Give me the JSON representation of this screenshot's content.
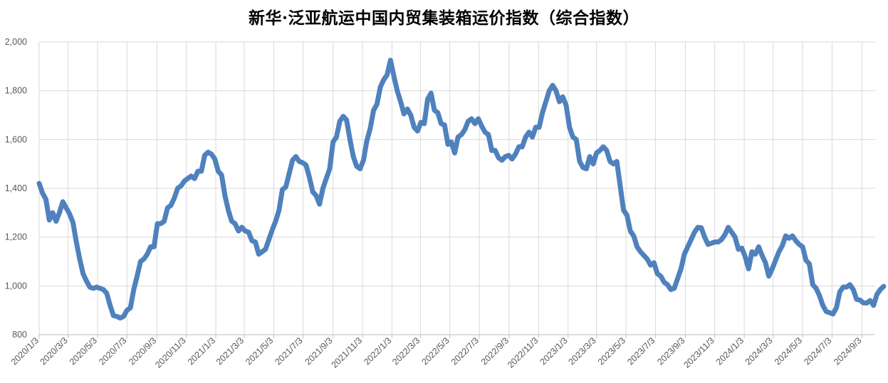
{
  "chart_data": {
    "type": "line",
    "title": "新华·泛亚航运中国内贸集装箱运价指数（综合指数）",
    "xlabel": "",
    "ylabel": "",
    "ylim": [
      800,
      2000
    ],
    "yticks": [
      "800",
      "1,000",
      "1,200",
      "1,400",
      "1,600",
      "1,800",
      "2,000"
    ],
    "xticks": [
      "2020/1/3",
      "2020/3/3",
      "2020/5/3",
      "2020/7/3",
      "2020/9/3",
      "2020/11/3",
      "2021/1/3",
      "2021/3/3",
      "2021/5/3",
      "2021/7/3",
      "2021/9/3",
      "2021/11/3",
      "2022/1/3",
      "2022/3/3",
      "2022/5/3",
      "2022/7/3",
      "2022/9/3",
      "2022/11/3",
      "2023/1/3",
      "2023/3/3",
      "2023/5/3",
      "2023/7/3",
      "2023/9/3",
      "2023/11/3",
      "2024/1/3",
      "2024/3/3",
      "2024/5/3",
      "2024/7/3",
      "2024/9/3"
    ],
    "grid": true,
    "legend": "none",
    "series": [
      {
        "color": "#4f81bd",
        "points": [
          [
            "2020/1/3",
            1420
          ],
          [
            "2020/1/10",
            1380
          ],
          [
            "2020/1/17",
            1355
          ],
          [
            "2020/1/24",
            1270
          ],
          [
            "2020/1/31",
            1300
          ],
          [
            "2020/2/7",
            1265
          ],
          [
            "2020/2/14",
            1300
          ],
          [
            "2020/2/21",
            1345
          ],
          [
            "2020/2/28",
            1320
          ],
          [
            "2020/3/6",
            1295
          ],
          [
            "2020/3/13",
            1260
          ],
          [
            "2020/3/20",
            1180
          ],
          [
            "2020/3/27",
            1110
          ],
          [
            "2020/4/3",
            1050
          ],
          [
            "2020/4/10",
            1020
          ],
          [
            "2020/4/17",
            995
          ],
          [
            "2020/4/24",
            990
          ],
          [
            "2020/5/1",
            995
          ],
          [
            "2020/5/8",
            990
          ],
          [
            "2020/5/15",
            985
          ],
          [
            "2020/5/22",
            970
          ],
          [
            "2020/5/29",
            920
          ],
          [
            "2020/6/5",
            878
          ],
          [
            "2020/6/12",
            875
          ],
          [
            "2020/6/19",
            868
          ],
          [
            "2020/6/26",
            875
          ],
          [
            "2020/7/3",
            900
          ],
          [
            "2020/7/10",
            910
          ],
          [
            "2020/7/17",
            985
          ],
          [
            "2020/7/24",
            1040
          ],
          [
            "2020/7/31",
            1100
          ],
          [
            "2020/8/7",
            1110
          ],
          [
            "2020/8/14",
            1130
          ],
          [
            "2020/8/21",
            1160
          ],
          [
            "2020/8/28",
            1160
          ],
          [
            "2020/9/4",
            1255
          ],
          [
            "2020/9/11",
            1255
          ],
          [
            "2020/9/18",
            1265
          ],
          [
            "2020/9/25",
            1320
          ],
          [
            "2020/10/2",
            1330
          ],
          [
            "2020/10/9",
            1360
          ],
          [
            "2020/10/16",
            1400
          ],
          [
            "2020/10/23",
            1410
          ],
          [
            "2020/10/30",
            1430
          ],
          [
            "2020/11/6",
            1440
          ],
          [
            "2020/11/13",
            1450
          ],
          [
            "2020/11/20",
            1440
          ],
          [
            "2020/11/27",
            1470
          ],
          [
            "2020/12/4",
            1470
          ],
          [
            "2020/12/11",
            1535
          ],
          [
            "2020/12/18",
            1548
          ],
          [
            "2020/12/25",
            1540
          ],
          [
            "2021/1/1",
            1520
          ],
          [
            "2021/1/8",
            1470
          ],
          [
            "2021/1/15",
            1455
          ],
          [
            "2021/1/22",
            1370
          ],
          [
            "2021/1/29",
            1310
          ],
          [
            "2021/2/5",
            1265
          ],
          [
            "2021/2/12",
            1255
          ],
          [
            "2021/2/19",
            1225
          ],
          [
            "2021/2/26",
            1240
          ],
          [
            "2021/3/5",
            1225
          ],
          [
            "2021/3/12",
            1220
          ],
          [
            "2021/3/19",
            1185
          ],
          [
            "2021/3/26",
            1180
          ],
          [
            "2021/4/2",
            1130
          ],
          [
            "2021/4/9",
            1140
          ],
          [
            "2021/4/16",
            1150
          ],
          [
            "2021/4/23",
            1190
          ],
          [
            "2021/4/30",
            1230
          ],
          [
            "2021/5/7",
            1265
          ],
          [
            "2021/5/14",
            1310
          ],
          [
            "2021/5/21",
            1395
          ],
          [
            "2021/5/28",
            1405
          ],
          [
            "2021/6/4",
            1460
          ],
          [
            "2021/6/11",
            1515
          ],
          [
            "2021/6/18",
            1530
          ],
          [
            "2021/6/25",
            1510
          ],
          [
            "2021/7/2",
            1505
          ],
          [
            "2021/7/9",
            1495
          ],
          [
            "2021/7/16",
            1445
          ],
          [
            "2021/7/23",
            1385
          ],
          [
            "2021/7/30",
            1370
          ],
          [
            "2021/8/6",
            1335
          ],
          [
            "2021/8/13",
            1400
          ],
          [
            "2021/8/20",
            1440
          ],
          [
            "2021/8/27",
            1480
          ],
          [
            "2021/9/3",
            1590
          ],
          [
            "2021/9/10",
            1610
          ],
          [
            "2021/9/17",
            1675
          ],
          [
            "2021/9/24",
            1695
          ],
          [
            "2021/10/1",
            1680
          ],
          [
            "2021/10/8",
            1600
          ],
          [
            "2021/10/15",
            1530
          ],
          [
            "2021/10/22",
            1490
          ],
          [
            "2021/10/29",
            1480
          ],
          [
            "2021/11/5",
            1515
          ],
          [
            "2021/11/12",
            1595
          ],
          [
            "2021/11/19",
            1645
          ],
          [
            "2021/11/26",
            1720
          ],
          [
            "2021/12/3",
            1745
          ],
          [
            "2021/12/10",
            1815
          ],
          [
            "2021/12/17",
            1845
          ],
          [
            "2021/12/24",
            1865
          ],
          [
            "2021/12/31",
            1925
          ],
          [
            "2022/1/7",
            1860
          ],
          [
            "2022/1/14",
            1800
          ],
          [
            "2022/1/21",
            1755
          ],
          [
            "2022/1/28",
            1705
          ],
          [
            "2022/2/4",
            1725
          ],
          [
            "2022/2/11",
            1700
          ],
          [
            "2022/2/18",
            1650
          ],
          [
            "2022/2/25",
            1635
          ],
          [
            "2022/3/4",
            1670
          ],
          [
            "2022/3/11",
            1665
          ],
          [
            "2022/3/18",
            1765
          ],
          [
            "2022/3/25",
            1790
          ],
          [
            "2022/4/1",
            1720
          ],
          [
            "2022/4/8",
            1710
          ],
          [
            "2022/4/15",
            1665
          ],
          [
            "2022/4/22",
            1660
          ],
          [
            "2022/4/29",
            1580
          ],
          [
            "2022/5/6",
            1590
          ],
          [
            "2022/5/13",
            1545
          ],
          [
            "2022/5/20",
            1610
          ],
          [
            "2022/5/27",
            1620
          ],
          [
            "2022/6/3",
            1640
          ],
          [
            "2022/6/10",
            1675
          ],
          [
            "2022/6/17",
            1685
          ],
          [
            "2022/6/24",
            1665
          ],
          [
            "2022/7/1",
            1685
          ],
          [
            "2022/7/8",
            1655
          ],
          [
            "2022/7/15",
            1630
          ],
          [
            "2022/7/22",
            1620
          ],
          [
            "2022/7/29",
            1555
          ],
          [
            "2022/8/5",
            1555
          ],
          [
            "2022/8/12",
            1525
          ],
          [
            "2022/8/19",
            1515
          ],
          [
            "2022/8/26",
            1530
          ],
          [
            "2022/9/2",
            1535
          ],
          [
            "2022/9/9",
            1520
          ],
          [
            "2022/9/16",
            1540
          ],
          [
            "2022/9/23",
            1570
          ],
          [
            "2022/9/30",
            1570
          ],
          [
            "2022/10/7",
            1610
          ],
          [
            "2022/10/14",
            1630
          ],
          [
            "2022/10/21",
            1610
          ],
          [
            "2022/10/28",
            1650
          ],
          [
            "2022/11/4",
            1650
          ],
          [
            "2022/11/11",
            1710
          ],
          [
            "2022/11/18",
            1755
          ],
          [
            "2022/11/25",
            1800
          ],
          [
            "2022/12/2",
            1822
          ],
          [
            "2022/12/9",
            1800
          ],
          [
            "2022/12/16",
            1755
          ],
          [
            "2022/12/23",
            1775
          ],
          [
            "2022/12/30",
            1740
          ],
          [
            "2023/1/6",
            1650
          ],
          [
            "2023/1/13",
            1610
          ],
          [
            "2023/1/20",
            1600
          ],
          [
            "2023/1/27",
            1510
          ],
          [
            "2023/2/3",
            1485
          ],
          [
            "2023/2/10",
            1480
          ],
          [
            "2023/2/17",
            1530
          ],
          [
            "2023/2/24",
            1500
          ],
          [
            "2023/3/3",
            1545
          ],
          [
            "2023/3/10",
            1555
          ],
          [
            "2023/3/17",
            1570
          ],
          [
            "2023/3/24",
            1555
          ],
          [
            "2023/3/31",
            1510
          ],
          [
            "2023/4/7",
            1500
          ],
          [
            "2023/4/14",
            1510
          ],
          [
            "2023/4/21",
            1410
          ],
          [
            "2023/4/28",
            1310
          ],
          [
            "2023/5/5",
            1290
          ],
          [
            "2023/5/12",
            1225
          ],
          [
            "2023/5/19",
            1205
          ],
          [
            "2023/5/26",
            1160
          ],
          [
            "2023/6/2",
            1140
          ],
          [
            "2023/6/9",
            1125
          ],
          [
            "2023/6/16",
            1110
          ],
          [
            "2023/6/23",
            1085
          ],
          [
            "2023/6/30",
            1095
          ],
          [
            "2023/7/7",
            1050
          ],
          [
            "2023/7/14",
            1040
          ],
          [
            "2023/7/21",
            1015
          ],
          [
            "2023/7/28",
            1005
          ],
          [
            "2023/8/4",
            985
          ],
          [
            "2023/8/11",
            990
          ],
          [
            "2023/8/18",
            1030
          ],
          [
            "2023/8/25",
            1070
          ],
          [
            "2023/9/1",
            1130
          ],
          [
            "2023/9/8",
            1160
          ],
          [
            "2023/9/15",
            1190
          ],
          [
            "2023/9/22",
            1220
          ],
          [
            "2023/9/29",
            1240
          ],
          [
            "2023/10/6",
            1238
          ],
          [
            "2023/10/13",
            1200
          ],
          [
            "2023/10/20",
            1170
          ],
          [
            "2023/10/27",
            1175
          ],
          [
            "2023/11/3",
            1180
          ],
          [
            "2023/11/10",
            1180
          ],
          [
            "2023/11/17",
            1190
          ],
          [
            "2023/11/24",
            1210
          ],
          [
            "2023/12/1",
            1240
          ],
          [
            "2023/12/8",
            1220
          ],
          [
            "2023/12/15",
            1200
          ],
          [
            "2023/12/22",
            1150
          ],
          [
            "2023/12/29",
            1155
          ],
          [
            "2024/1/5",
            1120
          ],
          [
            "2024/1/12",
            1070
          ],
          [
            "2024/1/19",
            1140
          ],
          [
            "2024/1/26",
            1130
          ],
          [
            "2024/2/2",
            1160
          ],
          [
            "2024/2/9",
            1125
          ],
          [
            "2024/2/16",
            1095
          ],
          [
            "2024/2/23",
            1040
          ],
          [
            "2024/3/1",
            1070
          ],
          [
            "2024/3/8",
            1105
          ],
          [
            "2024/3/15",
            1140
          ],
          [
            "2024/3/22",
            1165
          ],
          [
            "2024/3/29",
            1205
          ],
          [
            "2024/4/5",
            1195
          ],
          [
            "2024/4/12",
            1205
          ],
          [
            "2024/4/19",
            1185
          ],
          [
            "2024/4/26",
            1170
          ],
          [
            "2024/5/3",
            1160
          ],
          [
            "2024/5/10",
            1105
          ],
          [
            "2024/5/17",
            1090
          ],
          [
            "2024/5/24",
            1005
          ],
          [
            "2024/5/31",
            990
          ],
          [
            "2024/6/7",
            960
          ],
          [
            "2024/6/14",
            920
          ],
          [
            "2024/6/21",
            895
          ],
          [
            "2024/6/28",
            890
          ],
          [
            "2024/7/5",
            885
          ],
          [
            "2024/7/12",
            910
          ],
          [
            "2024/7/19",
            975
          ],
          [
            "2024/7/26",
            995
          ],
          [
            "2024/8/2",
            995
          ],
          [
            "2024/8/9",
            1005
          ],
          [
            "2024/8/16",
            985
          ],
          [
            "2024/8/23",
            945
          ],
          [
            "2024/8/30",
            942
          ],
          [
            "2024/9/6",
            930
          ],
          [
            "2024/9/13",
            930
          ],
          [
            "2024/9/20",
            940
          ],
          [
            "2024/9/27",
            920
          ],
          [
            "2024/10/4",
            965
          ],
          [
            "2024/10/11",
            985
          ],
          [
            "2024/10/18",
            998
          ]
        ]
      }
    ]
  }
}
